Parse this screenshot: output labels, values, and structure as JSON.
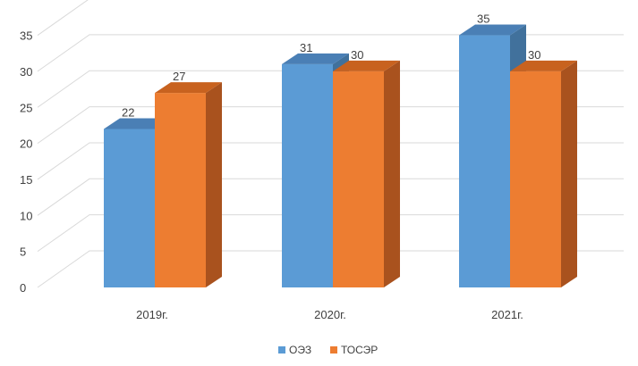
{
  "chart_data": {
    "type": "bar",
    "title": "",
    "xlabel": "",
    "ylabel": "",
    "categories": [
      "2019г.",
      "2020г.",
      "2021г."
    ],
    "series": [
      {
        "name": "ОЭЗ",
        "values": [
          22,
          31,
          35
        ],
        "color": "#5B9BD5",
        "side_color": "#41719C",
        "top_color": "#4A7FB5"
      },
      {
        "name": "ТОСЭР",
        "values": [
          27,
          30,
          30
        ],
        "color": "#ED7D31",
        "side_color": "#A9521E",
        "top_color": "#C8621F"
      }
    ],
    "ylim": [
      0,
      35
    ],
    "yticks": [
      0,
      5,
      10,
      15,
      20,
      25,
      30,
      35
    ],
    "grid": true,
    "three_d": true,
    "data_labels": true,
    "legend_position": "bottom"
  }
}
